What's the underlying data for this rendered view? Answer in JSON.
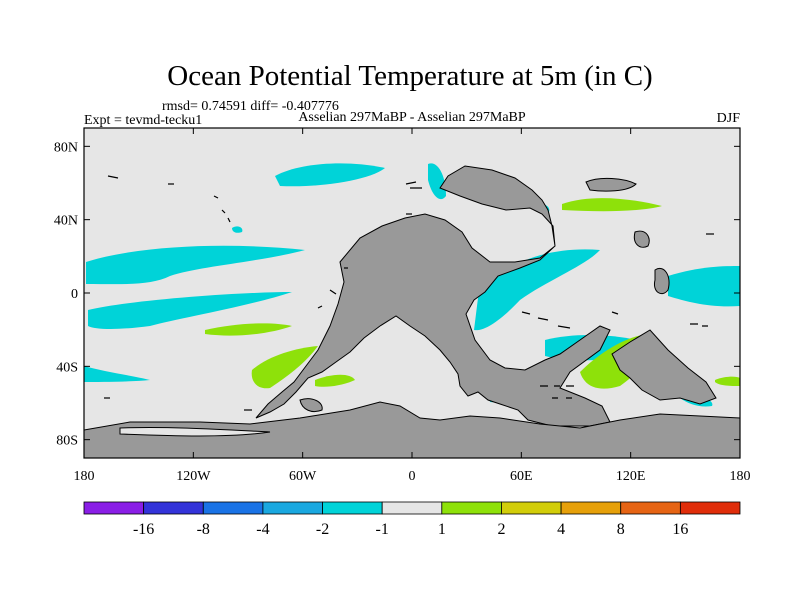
{
  "title": "Ocean Potential Temperature at 5m (in C)",
  "stats_line": "rmsd= 0.74591 diff= -0.407776",
  "experiment": "Expt = tevmd-tecku1",
  "comparison": "Asselian 297MaBP - Asselian 297MaBP",
  "season": "DJF",
  "map": {
    "projection": "cylindrical-equidistant",
    "lon_range": [
      -180,
      180
    ],
    "lat_range": [
      -90,
      90
    ],
    "lat_ticks": [
      {
        "value": 80,
        "label": "80N"
      },
      {
        "value": 40,
        "label": "40N"
      },
      {
        "value": 0,
        "label": "0"
      },
      {
        "value": -40,
        "label": "40S"
      },
      {
        "value": -80,
        "label": "80S"
      }
    ],
    "lon_ticks": [
      {
        "value": -180,
        "label": "180"
      },
      {
        "value": -120,
        "label": "120W"
      },
      {
        "value": -60,
        "label": "60W"
      },
      {
        "value": 0,
        "label": "0"
      },
      {
        "value": 60,
        "label": "60E"
      },
      {
        "value": 120,
        "label": "120E"
      },
      {
        "value": 180,
        "label": "180"
      }
    ],
    "colors": {
      "land": "#999999",
      "ocean_neutral": "#e6e6e6",
      "coast": "#000000",
      "cool_anomaly": "#00d3d8",
      "warm_anomaly": "#8ee10a"
    }
  },
  "colorbar": {
    "colors": [
      "#8a1ee6",
      "#3333d9",
      "#1a73e6",
      "#1aa8e0",
      "#00d3d8",
      "#e6e6e6",
      "#8ee10a",
      "#d2cd0a",
      "#e6a00a",
      "#e66414",
      "#e02d0a"
    ],
    "labels": [
      "-16",
      "-8",
      "-4",
      "-2",
      "-1",
      "1",
      "2",
      "4",
      "8",
      "16"
    ]
  }
}
